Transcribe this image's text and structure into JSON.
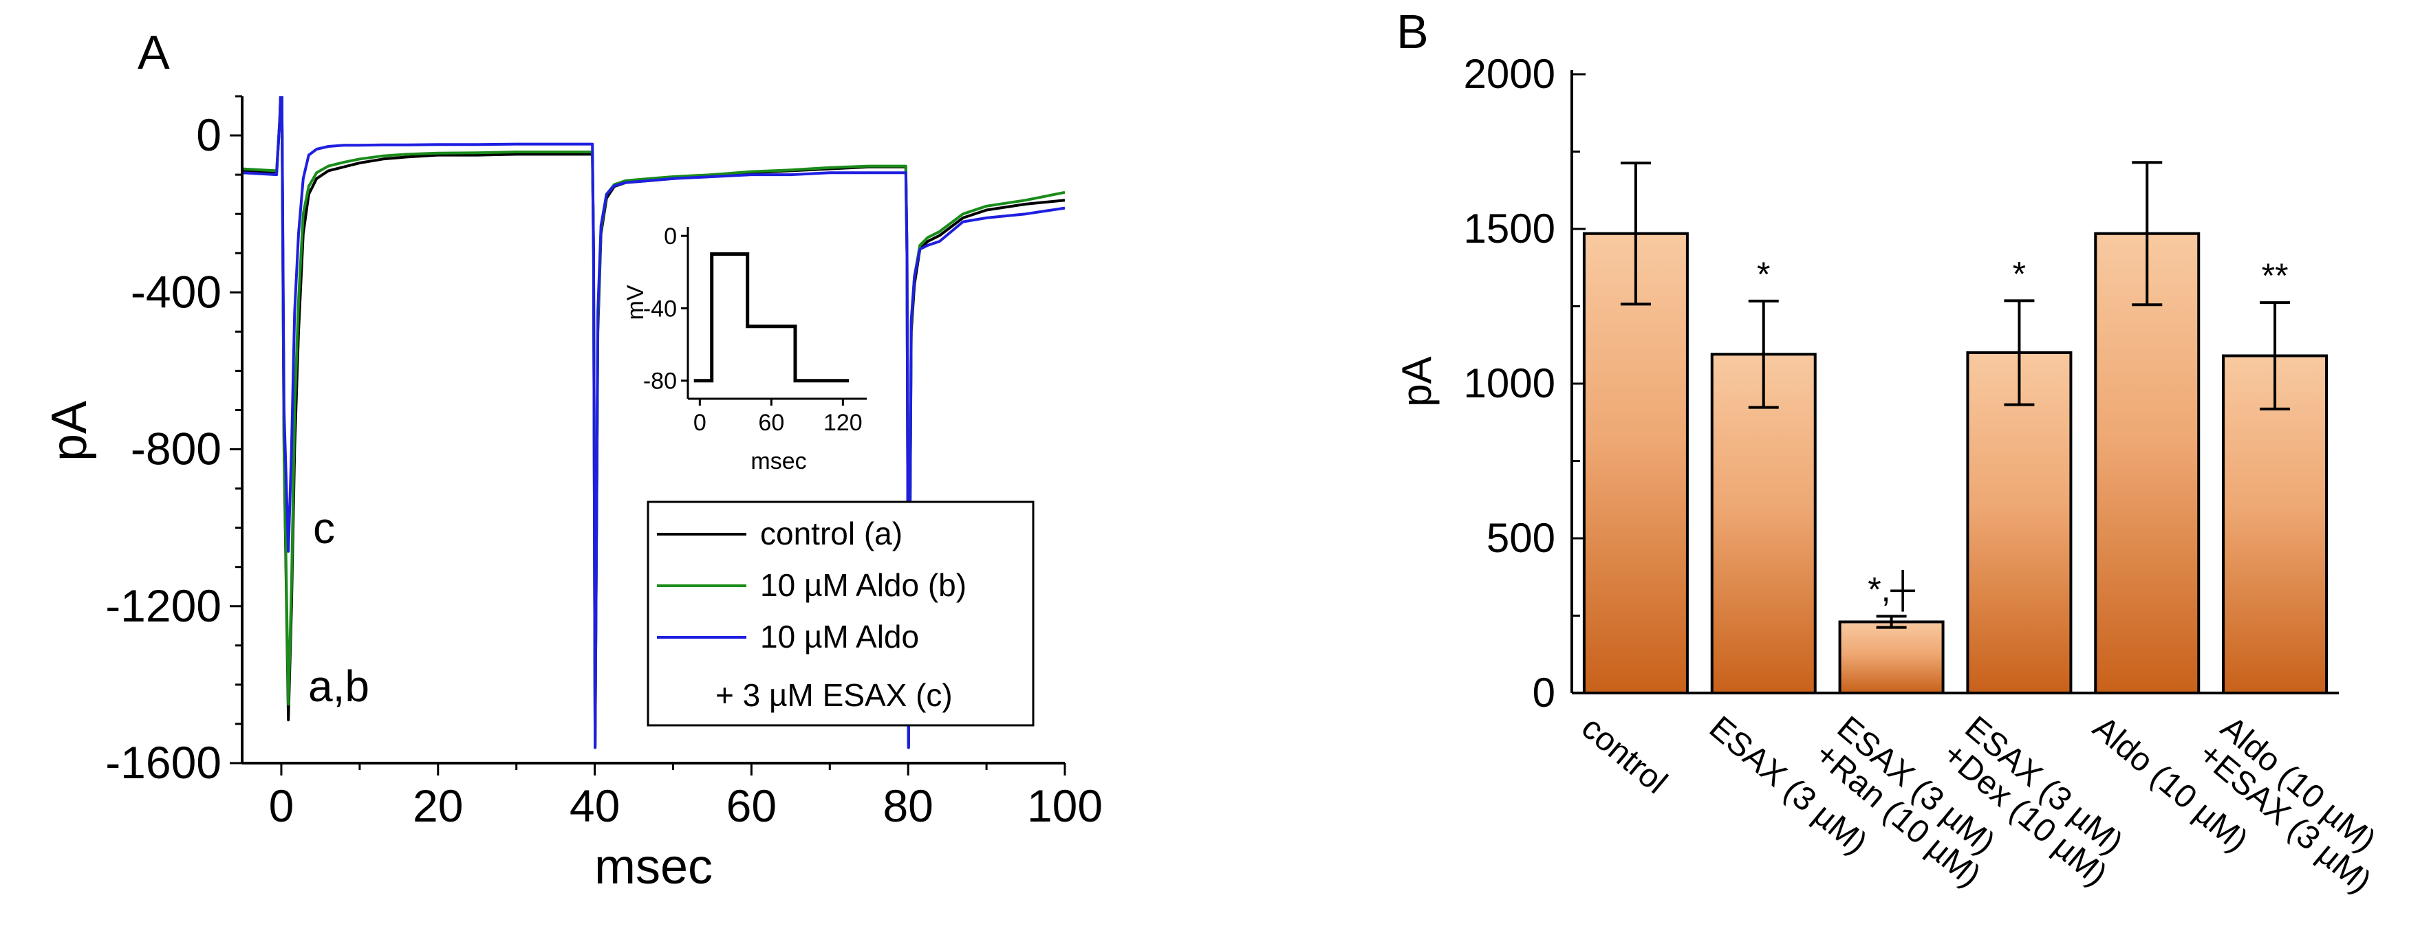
{
  "chart_data": [
    {
      "panel": "A",
      "type": "line",
      "xlabel": "msec",
      "ylabel": "pA",
      "xlim": [
        -5,
        100
      ],
      "ylim": [
        -1600,
        100
      ],
      "xticks": [
        0,
        20,
        40,
        60,
        80,
        100
      ],
      "yticks": [
        0,
        -400,
        -800,
        -1200,
        -1600
      ],
      "annotations": [
        "c",
        "a,b"
      ],
      "legend": {
        "position": "bottom-right",
        "entries": [
          {
            "label": "control (a)",
            "color": "#000000"
          },
          {
            "label": "10 µM Aldo (b)",
            "color": "#1a8c1a"
          },
          {
            "label": "10 µM Aldo",
            "label2": "+ 3 µM ESAX (c)",
            "color": "#1f1fe0"
          }
        ]
      },
      "inset": {
        "type": "line",
        "xlabel": "msec",
        "ylabel": "mV",
        "xlim": [
          -10,
          140
        ],
        "ylim": [
          -90,
          5
        ],
        "xticks": [
          0,
          60,
          120
        ],
        "yticks": [
          0,
          -40,
          -80
        ],
        "x": [
          -5,
          10,
          10,
          40,
          40,
          80,
          80,
          125
        ],
        "y": [
          -80,
          -80,
          -10,
          -10,
          -50,
          -50,
          -80,
          -80
        ]
      },
      "series": [
        {
          "name": "control (a)",
          "color": "#000000",
          "x": [
            -5,
            -0.6,
            -0.2,
            0.05,
            0.35,
            0.9,
            1.3,
            1.7,
            2.2,
            2.8,
            3.5,
            4.5,
            6,
            8,
            10,
            13,
            16,
            20,
            25,
            30,
            35,
            39.7,
            39.85,
            40.05,
            40.4,
            40.8,
            41.5,
            42.5,
            44,
            47,
            50,
            55,
            60,
            65,
            70,
            75,
            79.7,
            79.85,
            80.05,
            80.4,
            80.8,
            81.5,
            82.5,
            84,
            87,
            90,
            95,
            100
          ],
          "y": [
            -90,
            -95,
            40,
            180,
            -800,
            -1490,
            -1200,
            -800,
            -500,
            -250,
            -150,
            -110,
            -90,
            -80,
            -70,
            -60,
            -55,
            -50,
            -50,
            -48,
            -48,
            -48,
            -300,
            -1560,
            -500,
            -250,
            -160,
            -130,
            -120,
            -115,
            -110,
            -100,
            -95,
            -90,
            -85,
            -80,
            -80,
            -300,
            -1560,
            -500,
            -380,
            -290,
            -270,
            -255,
            -210,
            -190,
            -175,
            -165
          ]
        },
        {
          "name": "10 µM Aldo (b)",
          "color": "#1a8c1a",
          "x": [
            -5,
            -0.6,
            -0.2,
            0.05,
            0.35,
            0.9,
            1.3,
            1.7,
            2.2,
            2.8,
            3.5,
            4.5,
            6,
            8,
            10,
            13,
            16,
            20,
            25,
            30,
            35,
            39.7,
            39.85,
            40.05,
            40.4,
            40.8,
            41.5,
            42.5,
            44,
            47,
            50,
            55,
            60,
            65,
            70,
            75,
            79.7,
            79.85,
            80.05,
            80.4,
            80.8,
            81.5,
            82.5,
            84,
            87,
            90,
            95,
            100
          ],
          "y": [
            -85,
            -90,
            40,
            180,
            -780,
            -1450,
            -1150,
            -700,
            -420,
            -200,
            -130,
            -95,
            -78,
            -68,
            -60,
            -52,
            -48,
            -45,
            -44,
            -42,
            -42,
            -42,
            -300,
            -1560,
            -480,
            -240,
            -150,
            -125,
            -115,
            -110,
            -105,
            -100,
            -92,
            -88,
            -82,
            -78,
            -78,
            -300,
            -1560,
            -480,
            -360,
            -280,
            -260,
            -245,
            -200,
            -180,
            -165,
            -145
          ]
        },
        {
          "name": "10 µM Aldo + 3 µM ESAX (c)",
          "color": "#1f1fe0",
          "x": [
            -5,
            -0.6,
            -0.2,
            0.05,
            0.35,
            0.9,
            1.3,
            1.7,
            2.2,
            2.8,
            3.5,
            4.5,
            6,
            8,
            10,
            13,
            16,
            20,
            25,
            30,
            35,
            39.7,
            39.85,
            40.05,
            40.4,
            40.8,
            41.5,
            42.5,
            44,
            47,
            50,
            55,
            60,
            65,
            70,
            75,
            79.7,
            79.85,
            80.05,
            80.4,
            80.8,
            81.5,
            82.5,
            84,
            87,
            90,
            95,
            100
          ],
          "y": [
            -95,
            -100,
            40,
            180,
            -700,
            -1060,
            -800,
            -450,
            -250,
            -110,
            -50,
            -35,
            -28,
            -25,
            -25,
            -24,
            -24,
            -23,
            -23,
            -22,
            -22,
            -22,
            -300,
            -1560,
            -450,
            -230,
            -150,
            -128,
            -120,
            -115,
            -110,
            -105,
            -100,
            -100,
            -95,
            -95,
            -95,
            -300,
            -1560,
            -470,
            -360,
            -290,
            -280,
            -270,
            -220,
            -210,
            -200,
            -185
          ]
        }
      ]
    },
    {
      "panel": "B",
      "type": "bar",
      "ylabel": "pA",
      "ylim": [
        0,
        2000
      ],
      "yticks": [
        0,
        500,
        1000,
        1500,
        2000
      ],
      "categories": [
        {
          "line1": "control",
          "line2": ""
        },
        {
          "line1": "ESAX (3 µM)",
          "line2": ""
        },
        {
          "line1": "ESAX (3 µM)",
          "line2": "+Ran (10 µM)"
        },
        {
          "line1": "ESAX (3 µM)",
          "line2": "+Dex (10 µM)"
        },
        {
          "line1": "Aldo (10 µM)",
          "line2": ""
        },
        {
          "line1": "Aldo (10 µM)",
          "line2": "+ESAX (3 µM)"
        }
      ],
      "values": [
        1485,
        1095,
        230,
        1100,
        1485,
        1090
      ],
      "errors": [
        228,
        172,
        18,
        168,
        230,
        172
      ],
      "significance": [
        "",
        "*",
        "*,┼",
        "*",
        "",
        "**"
      ],
      "bar_color_top": "#f8c9a0",
      "bar_color_bottom": "#c8611a"
    }
  ],
  "panels": {
    "a_label": "A",
    "b_label": "B"
  }
}
